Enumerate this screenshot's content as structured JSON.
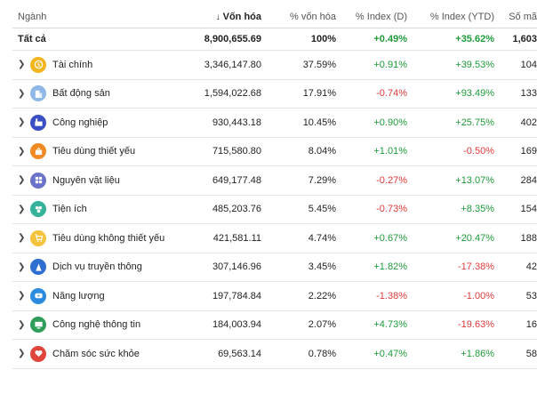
{
  "headers": {
    "name": "Ngành",
    "cap": "Vốn hóa",
    "cap_arrow": "↓",
    "cap_pct": "% vốn hóa",
    "index_d": "% Index (D)",
    "index_ytd": "% Index (YTD)",
    "count": "Số mã"
  },
  "total": {
    "name": "Tất cả",
    "cap": "8,900,655.69",
    "cap_pct": "100%",
    "index_d": "+0.49%",
    "index_ytd": "+35.62%",
    "count": "1,603"
  },
  "rows": [
    {
      "name": "Tài chính",
      "icon": "coin-icon",
      "color": "#f2b51d",
      "cap": "3,346,147.80",
      "cap_pct": "37.59%",
      "index_d": "+0.91%",
      "index_ytd": "+39.53%",
      "count": "104"
    },
    {
      "name": "Bất động sản",
      "icon": "building-icon",
      "color": "#8fb8e6",
      "cap": "1,594,022.68",
      "cap_pct": "17.91%",
      "index_d": "-0.74%",
      "index_ytd": "+93.49%",
      "count": "133"
    },
    {
      "name": "Công nghiệp",
      "icon": "factory-icon",
      "color": "#3b4fc4",
      "cap": "930,443.18",
      "cap_pct": "10.45%",
      "index_d": "+0.90%",
      "index_ytd": "+25.75%",
      "count": "402"
    },
    {
      "name": "Tiêu dùng thiết yếu",
      "icon": "basket-icon",
      "color": "#f08a24",
      "cap": "715,580.80",
      "cap_pct": "8.04%",
      "index_d": "+1.01%",
      "index_ytd": "-0.50%",
      "count": "169"
    },
    {
      "name": "Nguyên vật liệu",
      "icon": "materials-icon",
      "color": "#6a73c9",
      "cap": "649,177.48",
      "cap_pct": "7.29%",
      "index_d": "-0.27%",
      "index_ytd": "+13.07%",
      "count": "284"
    },
    {
      "name": "Tiện ích",
      "icon": "utility-icon",
      "color": "#34b39a",
      "cap": "485,203.76",
      "cap_pct": "5.45%",
      "index_d": "-0.73%",
      "index_ytd": "+8.35%",
      "count": "154"
    },
    {
      "name": "Tiêu dùng không thiết yếu",
      "icon": "cart-icon",
      "color": "#f5c33b",
      "cap": "421,581.11",
      "cap_pct": "4.74%",
      "index_d": "+0.67%",
      "index_ytd": "+20.47%",
      "count": "188"
    },
    {
      "name": "Dịch vụ truyền thông",
      "icon": "antenna-icon",
      "color": "#2f6fd1",
      "cap": "307,146.96",
      "cap_pct": "3.45%",
      "index_d": "+1.82%",
      "index_ytd": "-17.38%",
      "count": "42"
    },
    {
      "name": "Năng lượng",
      "icon": "energy-icon",
      "color": "#2a8be0",
      "cap": "197,784.84",
      "cap_pct": "2.22%",
      "index_d": "-1.38%",
      "index_ytd": "-1.00%",
      "count": "53"
    },
    {
      "name": "Công nghệ thông tin",
      "icon": "computer-icon",
      "color": "#2f9e5a",
      "cap": "184,003.94",
      "cap_pct": "2.07%",
      "index_d": "+4.73%",
      "index_ytd": "-19.63%",
      "count": "16"
    },
    {
      "name": "Chăm sóc sức khỏe",
      "icon": "heart-icon",
      "color": "#e0453c",
      "cap": "69,563.14",
      "cap_pct": "0.78%",
      "index_d": "+0.47%",
      "index_ytd": "+1.86%",
      "count": "58"
    }
  ]
}
